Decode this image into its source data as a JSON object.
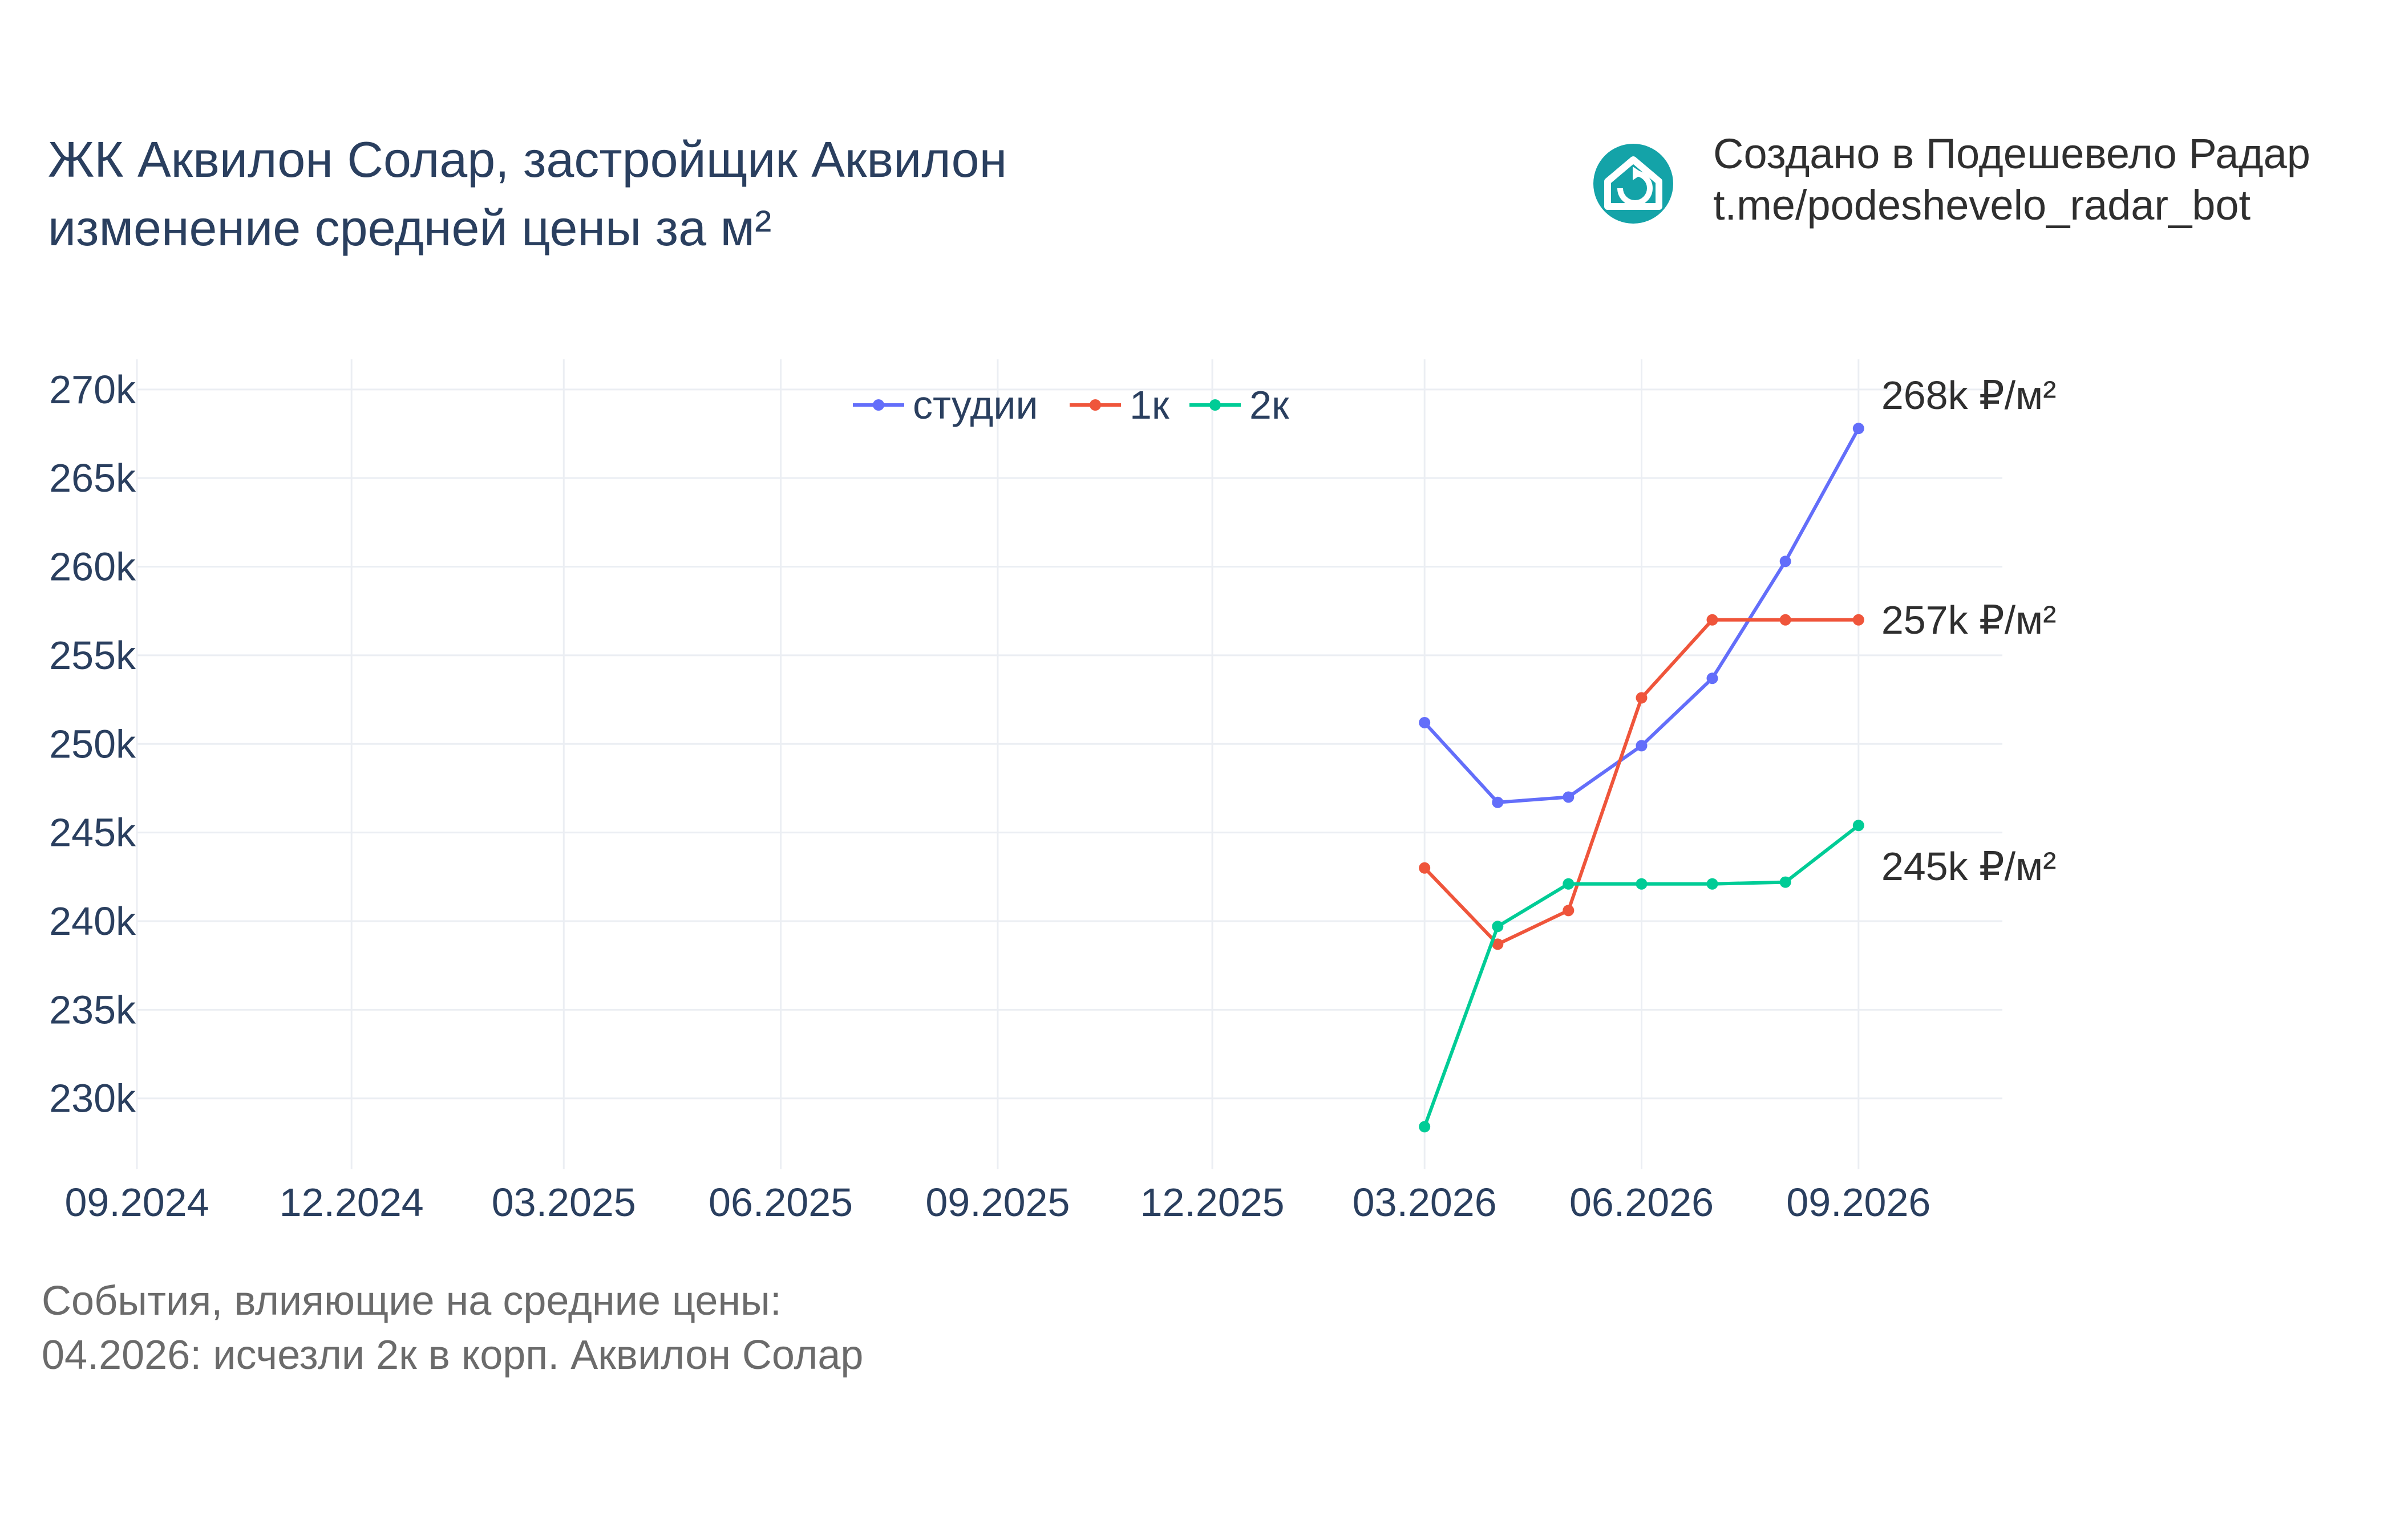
{
  "header": {
    "title_line1": "ЖК Аквилон Солар, застройщик Аквилон",
    "title_line2": "изменение средней цены за м²"
  },
  "branding": {
    "icon": "house-refresh-icon",
    "line1": "Создано в Подешевело Радар",
    "line2": "t.me/podeshevelo_radar_bot",
    "color": "#14a3a8"
  },
  "events": {
    "heading": "События, влияющие на средние цены:",
    "items": [
      "04.2026: исчезли 2к в корп. Аквилон Солар"
    ]
  },
  "chart_data": {
    "type": "line",
    "title": "ЖК Аквилон Солар, застройщик Аквилон изменение средней цены за м²",
    "xlabel": "",
    "ylabel": "",
    "x_ticks": [
      "09.2024",
      "12.2024",
      "03.2025",
      "06.2025",
      "09.2025",
      "12.2025",
      "03.2026",
      "06.2026",
      "09.2026"
    ],
    "y_ticks": [
      "230k",
      "235k",
      "240k",
      "245k",
      "250k",
      "255k",
      "260k",
      "265k",
      "270k"
    ],
    "ylim": [
      226000,
      271700
    ],
    "xlim": [
      "2024-09-01",
      "2026-11-01"
    ],
    "grid": true,
    "legend_position": "top-center",
    "x": [
      "2026-03-01",
      "2026-04-01",
      "2026-05-01",
      "2026-06-01",
      "2026-07-01",
      "2026-08-01",
      "2026-09-01"
    ],
    "series": [
      {
        "name": "студии",
        "color": "#636efa",
        "values": [
          251200,
          246700,
          247000,
          249900,
          253700,
          260300,
          267800
        ],
        "end_label": "268k ₽/м²"
      },
      {
        "name": "1к",
        "color": "#ef553b",
        "values": [
          243000,
          238700,
          240600,
          252600,
          257000,
          257000,
          257000
        ],
        "end_label": "257k ₽/м²"
      },
      {
        "name": "2к",
        "color": "#00cc96",
        "values": [
          228400,
          239700,
          242100,
          242100,
          242100,
          242200,
          245400
        ],
        "end_label": "245k ₽/м²"
      }
    ]
  }
}
